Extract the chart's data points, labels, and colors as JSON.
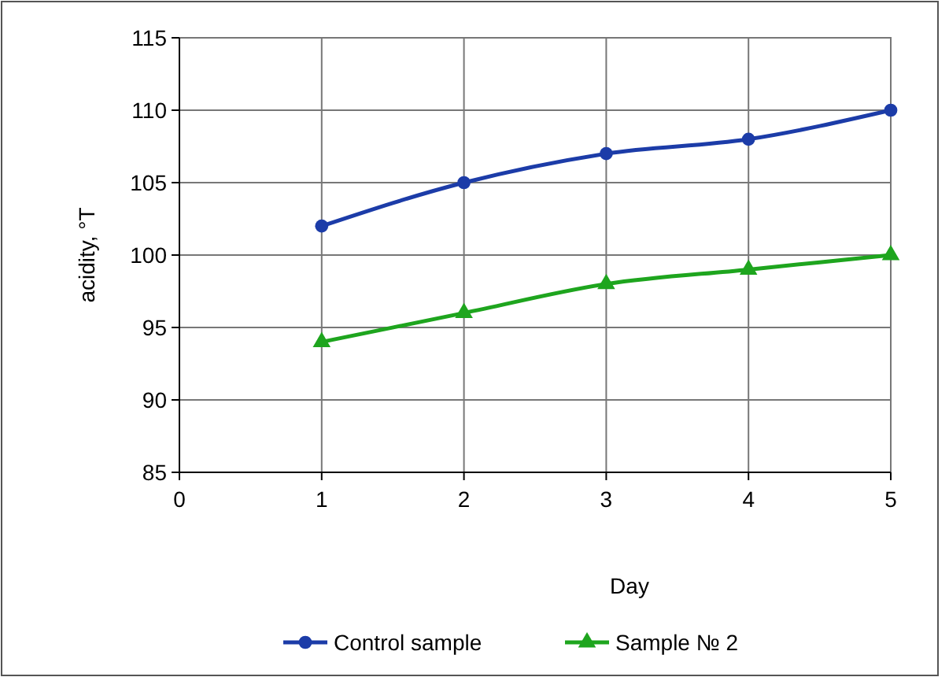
{
  "chart_data": {
    "type": "line",
    "xlabel": "Day",
    "ylabel": "acidity, °T",
    "x": [
      1,
      2,
      3,
      4,
      5
    ],
    "series": [
      {
        "name": "Control sample",
        "color": "#1c3ca8",
        "marker": "circle",
        "values": [
          102,
          105,
          107,
          108,
          110
        ]
      },
      {
        "name": "Sample № 2",
        "color": "#1ea51e",
        "marker": "triangle",
        "values": [
          94,
          96,
          98,
          99,
          100
        ]
      }
    ],
    "xlim": [
      0,
      5
    ],
    "xticks": [
      0,
      1,
      2,
      3,
      4,
      5
    ],
    "ylim": [
      85,
      115
    ],
    "yticks": [
      85,
      90,
      95,
      100,
      105,
      110,
      115
    ],
    "grid": true,
    "legend": "bottom",
    "line_style": "solid"
  }
}
